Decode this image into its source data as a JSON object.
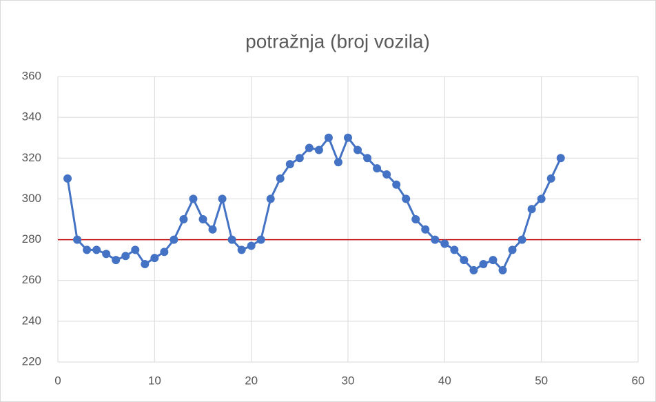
{
  "chart_data": {
    "type": "line",
    "title": "potražnja (broj vozila)",
    "x": [
      1,
      2,
      3,
      4,
      5,
      6,
      7,
      8,
      9,
      10,
      11,
      12,
      13,
      14,
      15,
      16,
      17,
      18,
      19,
      20,
      21,
      22,
      23,
      24,
      25,
      26,
      27,
      28,
      29,
      30,
      31,
      32,
      33,
      34,
      35,
      36,
      37,
      38,
      39,
      40,
      41,
      42,
      43,
      44,
      45,
      46,
      47,
      48,
      49,
      50,
      51,
      52
    ],
    "series": [
      {
        "color": "#4472c4",
        "values": [
          310,
          280,
          275,
          275,
          273,
          270,
          272,
          275,
          268,
          271,
          274,
          280,
          290,
          300,
          290,
          285,
          300,
          280,
          275,
          277,
          280,
          300,
          310,
          317,
          320,
          325,
          324,
          330,
          318,
          330,
          324,
          320,
          315,
          312,
          307,
          300,
          290,
          285,
          280,
          278,
          275,
          270,
          265,
          268,
          270,
          265,
          275,
          280,
          295,
          300,
          310,
          320
        ]
      }
    ],
    "reference_line": {
      "value": 280,
      "color": "#c00000"
    },
    "xlim": [
      0,
      60
    ],
    "xticks": [
      0,
      10,
      20,
      30,
      40,
      50,
      60
    ],
    "ylim": [
      220,
      360
    ],
    "yticks": [
      220,
      240,
      260,
      280,
      300,
      320,
      340,
      360
    ],
    "grid": true
  }
}
